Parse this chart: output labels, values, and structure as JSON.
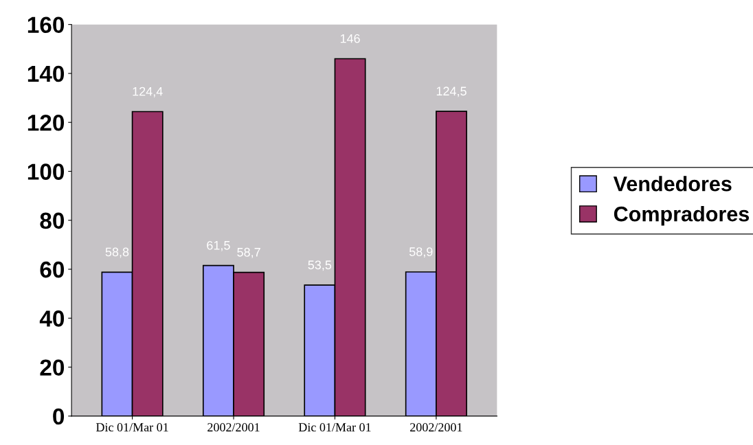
{
  "chart_data": {
    "type": "bar",
    "categories": [
      "Dic 01/Mar 01",
      "2002/2001",
      "Dic 01/Mar 01",
      "2002/2001"
    ],
    "series": [
      {
        "name": "Vendedores",
        "color": "#9999ff",
        "values": [
          58.8,
          61.5,
          53.5,
          58.9
        ],
        "value_labels": [
          "58,8",
          "61,5",
          "53,5",
          "58,9"
        ]
      },
      {
        "name": "Compradores",
        "color": "#993366",
        "values": [
          124.4,
          58.7,
          146,
          124.5
        ],
        "value_labels": [
          "124,4",
          "58,7",
          "146",
          "124,5"
        ]
      }
    ],
    "ylim": [
      0,
      160
    ],
    "yticks": [
      0,
      20,
      40,
      60,
      80,
      100,
      120,
      140,
      160
    ],
    "grid": false,
    "legend": "right"
  }
}
